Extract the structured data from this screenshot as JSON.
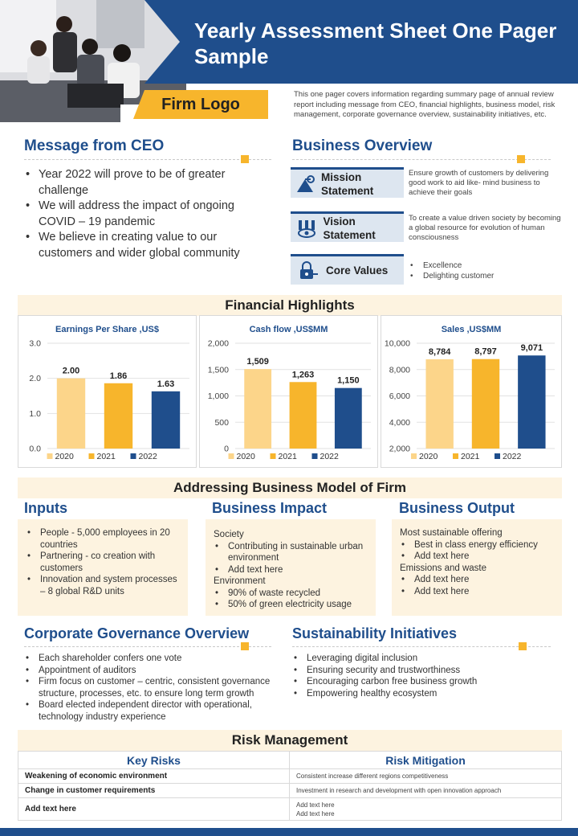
{
  "header": {
    "title": "Yearly Assessment Sheet One Pager Sample",
    "firm_logo": "Firm Logo",
    "intro": "This one pager covers information regarding summary page of annual review report including message from CEO,  financial highlights, business model, risk management,  corporate governance overview, sustainability initiatives, etc."
  },
  "ceo": {
    "title": "Message from CEO",
    "bullets": [
      "Year 2022 will prove to be of greater challenge",
      "We will address the impact of ongoing COVID – 19 pandemic",
      "We believe in creating value  to our customers and wider global community"
    ]
  },
  "business_overview": {
    "title": "Business Overview",
    "items": [
      {
        "label": "Mission Statement",
        "icon": "mission-icon",
        "desc": "Ensure growth of customers by delivering good  work to aid like- mind business to achieve their goals"
      },
      {
        "label": "Vision Statement",
        "icon": "vision-icon",
        "desc": "To create a value driven society by becoming a global resource for evolution of human consciousness"
      },
      {
        "label": "Core Values",
        "icon": "core-values-icon",
        "values": [
          "Excellence",
          "Delighting  customer"
        ]
      }
    ]
  },
  "financial": {
    "title": "Financial Highlights"
  },
  "colors": {
    "navy": "#1f4e8c",
    "accent": "#f7b52c",
    "light_accent": "#fcd58a",
    "band": "#fdf3e0"
  },
  "chart_data": [
    {
      "type": "bar",
      "title": "Earnings Per Share ,US$",
      "categories": [
        "2020",
        "2021",
        "2022"
      ],
      "values": [
        2.0,
        1.86,
        1.63
      ],
      "value_labels": [
        "2.00",
        "1.86",
        "1.63"
      ],
      "yticks": [
        "3.0",
        "2.0",
        "1.0",
        "0.0"
      ],
      "ylim": [
        0,
        3
      ],
      "grid": true,
      "legend": "bottom"
    },
    {
      "type": "bar",
      "title": "Cash flow ,US$MM",
      "categories": [
        "2020",
        "2021",
        "2022"
      ],
      "values": [
        1509,
        1263,
        1150
      ],
      "value_labels": [
        "1,509",
        "1,263",
        "1,150"
      ],
      "yticks": [
        "2,000",
        "1,500",
        "1,000",
        "500",
        "0"
      ],
      "ylim": [
        0,
        2000
      ],
      "grid": true,
      "legend": "bottom"
    },
    {
      "type": "bar",
      "title": "Sales ,US$MM",
      "categories": [
        "2020",
        "2021",
        "2022"
      ],
      "values": [
        8784,
        8797,
        9071
      ],
      "value_labels": [
        "8,784",
        "8,797",
        "9,071"
      ],
      "yticks": [
        "10,000",
        "8,000",
        "6,000",
        "4,000",
        "2,000"
      ],
      "ylim": [
        2000,
        10000
      ],
      "grid": true,
      "legend": "bottom"
    }
  ],
  "business_model": {
    "title": "Addressing Business Model of Firm",
    "inputs": {
      "title": "Inputs",
      "bullets": [
        "People - 5,000 employees in 20 countries",
        "Partnering - co creation with customers",
        "Innovation and system processes – 8 global R&D units"
      ]
    },
    "impact": {
      "title": "Business Impact",
      "heading1": "Society",
      "bullets1": [
        "Contributing in sustainable urban environment",
        "Add text here"
      ],
      "heading2": "Environment",
      "bullets2": [
        "90% of waste recycled",
        "50% of green electricity usage"
      ]
    },
    "output": {
      "title": "Business Output",
      "heading1": "Most sustainable offering",
      "bullets1": [
        "Best in class energy efficiency",
        "Add text here"
      ],
      "heading2": "Emissions and waste",
      "bullets2": [
        "Add text here",
        "Add text here"
      ]
    }
  },
  "governance": {
    "title": "Corporate Governance Overview",
    "bullets": [
      "Each shareholder confers one vote",
      "Appointment of auditors",
      "Firm focus on customer – centric, consistent governance structure, processes, etc. to  ensure long term growth",
      "Board elected independent director with operational, technology industry experience"
    ]
  },
  "sustainability": {
    "title": "Sustainability Initiatives",
    "bullets": [
      "Leveraging digital inclusion",
      "Ensuring security and trustworthiness",
      "Encouraging carbon free business growth",
      "Empowering healthy ecosystem"
    ]
  },
  "risk": {
    "title": "Risk Management",
    "col1": "Key Risks",
    "col2": "Risk Mitigation",
    "rows": [
      {
        "risk": "Weakening of economic environment",
        "mitigation": "Consistent increase different regions competitiveness"
      },
      {
        "risk": "Change in customer requirements",
        "mitigation": "Investment in research and development with  open innovation approach"
      },
      {
        "risk": "Add text here",
        "mitigation": "Add text here\nAdd text here"
      }
    ]
  }
}
